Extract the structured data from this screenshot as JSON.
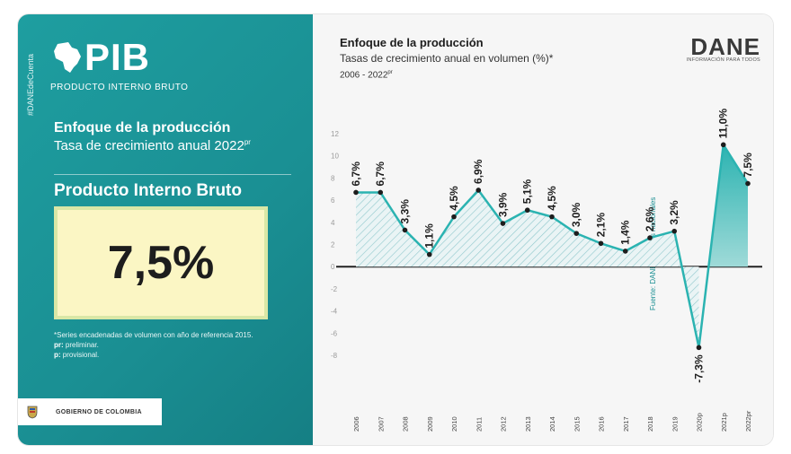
{
  "left_panel": {
    "side_tag": "#DANEdeCuenta",
    "logo_title": "PIB",
    "logo_subtitle": "PRODUCTO INTERNO BRUTO",
    "heading": "Enfoque de la producción",
    "subheading": "Tasa de crecimiento anual 2022",
    "subheading_sup": "pr",
    "indicator_name": "Producto Interno Bruto",
    "value": "7,5%",
    "note_1": "*Series encadenadas de volumen con año de referencia 2015.",
    "note_pr_key": "pr:",
    "note_pr_text": "preliminar.",
    "note_p_key": "p:",
    "note_p_text": "provisional.",
    "government_label": "GOBIERNO DE COLOMBIA"
  },
  "right_panel": {
    "title": "Enfoque de la producción",
    "subtitle": "Tasas de crecimiento anual en volumen (%)*",
    "years_label": "2006 - 2022",
    "years_label_sup": "pr",
    "brand": "DANE",
    "brand_tagline": "INFORMACIÓN PARA TODOS",
    "source": "Fuente: DANE, Cuentas nacionales"
  },
  "colors": {
    "teal": "#1a9ea1",
    "line": "#2bb3b1",
    "text_dark": "#1d1d1d"
  },
  "chart_data": {
    "type": "area",
    "categories": [
      "2006",
      "2007",
      "2008",
      "2009",
      "2010",
      "2011",
      "2012",
      "2013",
      "2014",
      "2015",
      "2016",
      "2017",
      "2018",
      "2019",
      "2020p",
      "2021p",
      "2022pr"
    ],
    "series": [
      {
        "values": [
          6.7,
          6.7,
          3.3,
          1.1,
          4.5,
          6.9,
          3.9,
          5.1,
          4.5,
          3.0,
          2.1,
          1.4,
          2.6,
          3.2,
          -7.3,
          11.0,
          7.5
        ]
      }
    ],
    "data_labels": [
      "6,7%",
      "6,7%",
      "3,3%",
      "1,1%",
      "4,5%",
      "6,9%",
      "3,9%",
      "5,1%",
      "4,5%",
      "3,0%",
      "2,1%",
      "1,4%",
      "2,6%",
      "3,2%",
      "-7,3%",
      "11,0%",
      "7,5%"
    ],
    "y_ticks": [
      "12",
      "10",
      "8",
      "6",
      "4",
      "2",
      "0",
      "-2",
      "-4",
      "-6",
      "-8"
    ],
    "ylim": [
      -8,
      12
    ],
    "grid": false
  }
}
